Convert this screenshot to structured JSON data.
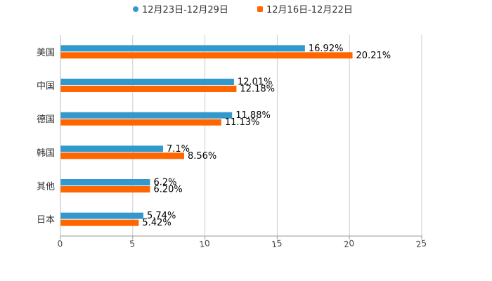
{
  "chart_data": {
    "type": "bar",
    "orientation": "horizontal",
    "title": "",
    "xlabel": "",
    "ylabel": "",
    "xlim": [
      0,
      25
    ],
    "x_ticks": [
      0,
      5,
      10,
      15,
      20,
      25
    ],
    "grid": true,
    "legend_position": "top",
    "categories": [
      "美国",
      "中国",
      "德国",
      "韩国",
      "其他",
      "日本"
    ],
    "series": [
      {
        "name": "12月23日-12月29日",
        "color": "#3399cc",
        "values": [
          16.92,
          12.01,
          11.88,
          7.1,
          6.2,
          5.74
        ],
        "labels": [
          "16.92%",
          "12.01%",
          "11.88%",
          "7.1%",
          "6.2%",
          "5.74%"
        ]
      },
      {
        "name": "12月16日-12月22日",
        "color": "#ff6600",
        "values": [
          20.21,
          12.18,
          11.13,
          8.56,
          6.2,
          5.42
        ],
        "labels": [
          "20.21%",
          "12.18%",
          "11.13%",
          "8.56%",
          "6.20%",
          "5.42%"
        ]
      }
    ]
  }
}
